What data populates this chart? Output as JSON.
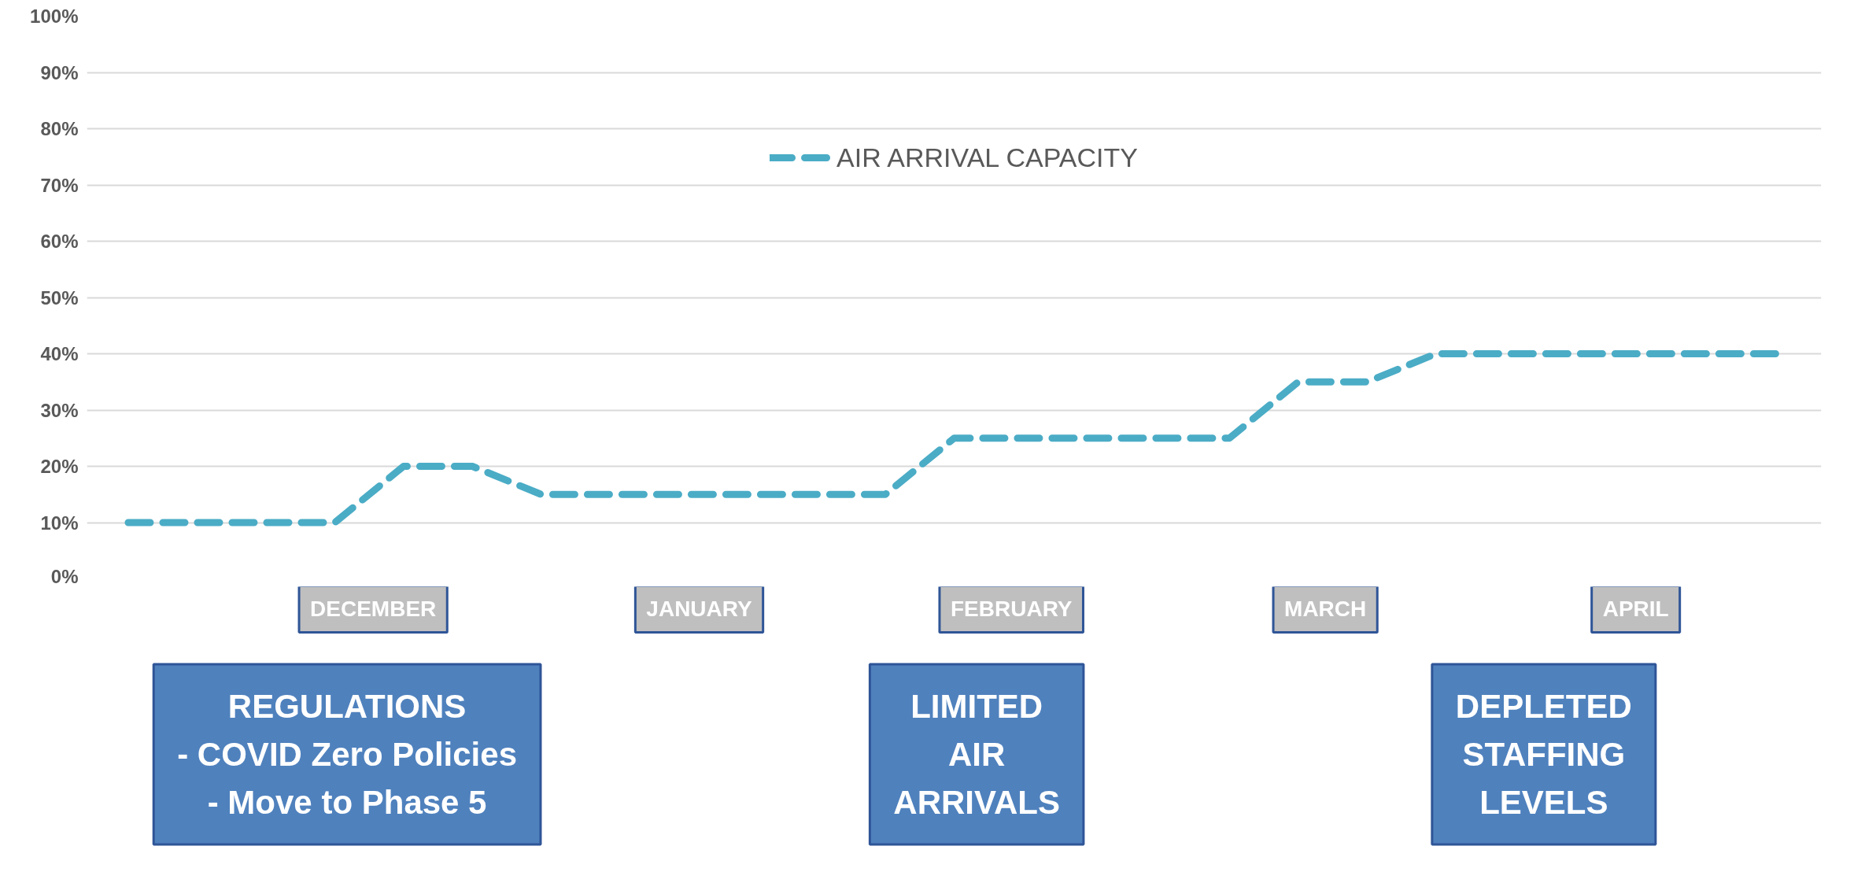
{
  "chart_data": {
    "type": "line",
    "categories": [
      null,
      null,
      null,
      null,
      null,
      null,
      null,
      null,
      null,
      null,
      null,
      null,
      null,
      null,
      null,
      null,
      null,
      null,
      null,
      null,
      null,
      null,
      null,
      null,
      null
    ],
    "series": [
      {
        "name": "AIR ARRIVAL CAPACITY",
        "color": "#4bacc6",
        "values": [
          10,
          10,
          10,
          10,
          20,
          20,
          15,
          15,
          15,
          15,
          15,
          15,
          25,
          25,
          25,
          25,
          25,
          35,
          35,
          40,
          40,
          40,
          40,
          40,
          40
        ]
      }
    ],
    "ylim": [
      0,
      100
    ],
    "yticks": [
      {
        "value": 0,
        "label": "0%"
      },
      {
        "value": 10,
        "label": "10%"
      },
      {
        "value": 20,
        "label": "20%"
      },
      {
        "value": 30,
        "label": "30%"
      },
      {
        "value": 40,
        "label": "40%"
      },
      {
        "value": 50,
        "label": "50%"
      },
      {
        "value": 60,
        "label": "60%"
      },
      {
        "value": 70,
        "label": "70%"
      },
      {
        "value": 80,
        "label": "80%"
      },
      {
        "value": 90,
        "label": "90%"
      },
      {
        "value": 100,
        "label": "100%"
      }
    ],
    "tick_labels": "y",
    "grid": "y",
    "legend": "top",
    "marker": "none",
    "line_style": "dashed",
    "annotations": [
      "DECEMBER",
      "JANUARY",
      "FEBRUARY",
      "MARCH",
      "APRIL",
      "REGULATIONS\n- COVID Zero Policies\n- Move to Phase 5",
      "LIMITED\nAIR\nARRIVALS",
      "DEPLETED\nSTAFFING\nLEVELS"
    ]
  }
}
